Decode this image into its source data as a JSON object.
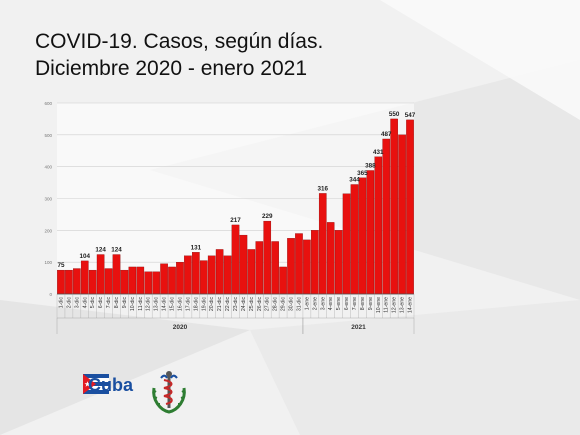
{
  "title": {
    "line1": "COVID-19. Casos, según días.",
    "line2": "Diciembre 2020 - enero 2021"
  },
  "brand": {
    "label": "Cuba"
  },
  "colors": {
    "bar": "#e8110f",
    "bar_stroke": "#7a0000",
    "flag_blue": "#1a4fa0",
    "flag_red": "#e31b23"
  },
  "chart_data": {
    "type": "bar",
    "ylim": [
      0,
      600
    ],
    "yticks": [
      0,
      100,
      200,
      300,
      400,
      500,
      600
    ],
    "grid": true,
    "categories": [
      "1-dic",
      "2-dic",
      "3-dic",
      "4-dic",
      "5-dic",
      "6-dic",
      "7-dic",
      "8-dic",
      "9-dic",
      "10-dic",
      "11-dic",
      "12-dic",
      "13-dic",
      "14-dic",
      "15-dic",
      "16-dic",
      "17-dic",
      "18-dic",
      "19-dic",
      "20-dic",
      "21-dic",
      "22-dic",
      "23-dic",
      "24-dic",
      "25-dic",
      "26-dic",
      "27-dic",
      "28-dic",
      "29-dic",
      "30-dic",
      "31-dic",
      "1-ene",
      "2-ene",
      "3-ene",
      "4-ene",
      "5-ene",
      "6-ene",
      "7-ene",
      "8-ene",
      "9-ene",
      "10-ene",
      "11-ene",
      "12-ene",
      "13-ene",
      "14-ene"
    ],
    "values": [
      75,
      75,
      80,
      104,
      75,
      124,
      80,
      124,
      75,
      85,
      85,
      70,
      70,
      95,
      85,
      100,
      120,
      131,
      105,
      120,
      140,
      120,
      217,
      185,
      140,
      165,
      229,
      165,
      85,
      175,
      190,
      170,
      200,
      316,
      225,
      200,
      315,
      344,
      365,
      388,
      431,
      487,
      550,
      500,
      547
    ],
    "labels": [
      {
        "index": 0,
        "text": "75"
      },
      {
        "index": 3,
        "text": "104"
      },
      {
        "index": 5,
        "text": "124"
      },
      {
        "index": 7,
        "text": "124"
      },
      {
        "index": 17,
        "text": "131"
      },
      {
        "index": 22,
        "text": "217"
      },
      {
        "index": 26,
        "text": "229"
      },
      {
        "index": 33,
        "text": "316"
      },
      {
        "index": 37,
        "text": "344"
      },
      {
        "index": 38,
        "text": "365"
      },
      {
        "index": 39,
        "text": "388"
      },
      {
        "index": 40,
        "text": "431"
      },
      {
        "index": 41,
        "text": "487"
      },
      {
        "index": 42,
        "text": "550"
      },
      {
        "index": 44,
        "text": "547"
      }
    ],
    "groups": [
      {
        "label": "2020",
        "start": 0,
        "end": 30
      },
      {
        "label": "2021",
        "start": 31,
        "end": 44
      }
    ]
  }
}
